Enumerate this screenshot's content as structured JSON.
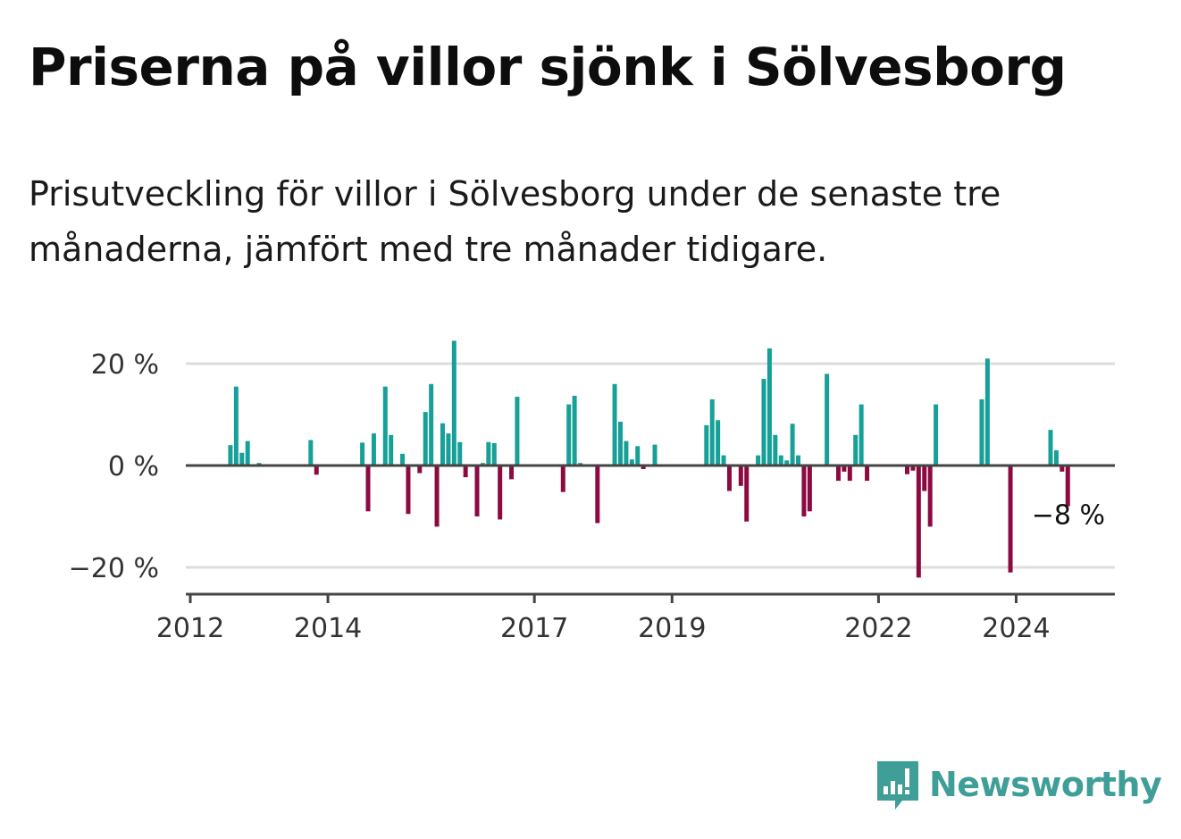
{
  "title": "Priserna på villor sjönk i Sölvesborg",
  "subtitle": "Prisutveckling för villor i Sölvesborg under de senaste tre månaderna, jämfört med tre månader tidigare.",
  "logo": {
    "icon": "newsworthy-logo-icon",
    "text": "Newsworthy"
  },
  "colors": {
    "positive": "#16a098",
    "negative": "#8c0a40",
    "logo": "#3f9e97"
  },
  "chart_data": {
    "type": "bar",
    "title": "Priserna på villor sjönk i Sölvesborg",
    "subtitle": "Prisutveckling för villor i Sölvesborg under de senaste tre månaderna, jämfört med tre månader tidigare.",
    "xlabel": "",
    "ylabel": "",
    "ylim": [
      -25,
      25
    ],
    "xlim": [
      "2012-01",
      "2025-06"
    ],
    "y_ticks": [
      {
        "value": 20,
        "label": "20 %"
      },
      {
        "value": 0,
        "label": "0 %"
      },
      {
        "value": -20,
        "label": "−20 %"
      }
    ],
    "x_ticks": [
      {
        "value": "2012-01",
        "label": "2012"
      },
      {
        "value": "2014-01",
        "label": "2014"
      },
      {
        "value": "2017-01",
        "label": "2017"
      },
      {
        "value": "2019-01",
        "label": "2019"
      },
      {
        "value": "2022-01",
        "label": "2022"
      },
      {
        "value": "2024-01",
        "label": "2024"
      }
    ],
    "grid": true,
    "annotation": {
      "x": "2024-10",
      "value": -8,
      "label": "−8 %"
    },
    "points": [
      [
        "2012-08",
        4
      ],
      [
        "2012-09",
        15.5
      ],
      [
        "2012-10",
        2.5
      ],
      [
        "2012-11",
        4.8
      ],
      [
        "2013-01",
        0.5
      ],
      [
        "2013-10",
        5
      ],
      [
        "2013-11",
        -1.8
      ],
      [
        "2014-07",
        4.5
      ],
      [
        "2014-08",
        -9
      ],
      [
        "2014-09",
        6.3
      ],
      [
        "2014-11",
        15.5
      ],
      [
        "2014-12",
        6
      ],
      [
        "2015-02",
        2.3
      ],
      [
        "2015-03",
        -9.5
      ],
      [
        "2015-05",
        -1.5
      ],
      [
        "2015-06",
        10.5
      ],
      [
        "2015-07",
        16
      ],
      [
        "2015-08",
        -12
      ],
      [
        "2015-09",
        8.3
      ],
      [
        "2015-10",
        6.3
      ],
      [
        "2015-11",
        24.5
      ],
      [
        "2015-12",
        4.6
      ],
      [
        "2016-01",
        -2.3
      ],
      [
        "2016-03",
        -10
      ],
      [
        "2016-04",
        0.5
      ],
      [
        "2016-05",
        4.6
      ],
      [
        "2016-06",
        4.4
      ],
      [
        "2016-07",
        -10.6
      ],
      [
        "2016-09",
        -2.7
      ],
      [
        "2016-10",
        13.5
      ],
      [
        "2017-06",
        -5.2
      ],
      [
        "2017-07",
        12
      ],
      [
        "2017-08",
        13.7
      ],
      [
        "2017-09",
        0.5
      ],
      [
        "2017-12",
        -11.3
      ],
      [
        "2018-03",
        16
      ],
      [
        "2018-04",
        8.6
      ],
      [
        "2018-05",
        4.8
      ],
      [
        "2018-06",
        1.2
      ],
      [
        "2018-07",
        3.8
      ],
      [
        "2018-08",
        -0.7
      ],
      [
        "2018-10",
        4.1
      ],
      [
        "2019-07",
        7.9
      ],
      [
        "2019-08",
        13
      ],
      [
        "2019-09",
        8.9
      ],
      [
        "2019-10",
        2
      ],
      [
        "2019-11",
        -5
      ],
      [
        "2020-01",
        -4
      ],
      [
        "2020-02",
        -11
      ],
      [
        "2020-04",
        2
      ],
      [
        "2020-05",
        17
      ],
      [
        "2020-06",
        23
      ],
      [
        "2020-07",
        6
      ],
      [
        "2020-08",
        2
      ],
      [
        "2020-09",
        1
      ],
      [
        "2020-10",
        8.2
      ],
      [
        "2020-11",
        2
      ],
      [
        "2020-12",
        -10
      ],
      [
        "2021-01",
        -9
      ],
      [
        "2021-04",
        18
      ],
      [
        "2021-06",
        -3
      ],
      [
        "2021-07",
        -1.2
      ],
      [
        "2021-08",
        -3
      ],
      [
        "2021-09",
        6
      ],
      [
        "2021-10",
        12
      ],
      [
        "2021-11",
        -3
      ],
      [
        "2022-06",
        -1.7
      ],
      [
        "2022-07",
        -1
      ],
      [
        "2022-08",
        -22
      ],
      [
        "2022-09",
        -5
      ],
      [
        "2022-10",
        -12
      ],
      [
        "2022-11",
        12
      ],
      [
        "2023-07",
        13
      ],
      [
        "2023-08",
        21
      ],
      [
        "2023-12",
        -21
      ],
      [
        "2024-07",
        7
      ],
      [
        "2024-08",
        3
      ],
      [
        "2024-09",
        -1.2
      ],
      [
        "2024-10",
        -8
      ]
    ]
  }
}
